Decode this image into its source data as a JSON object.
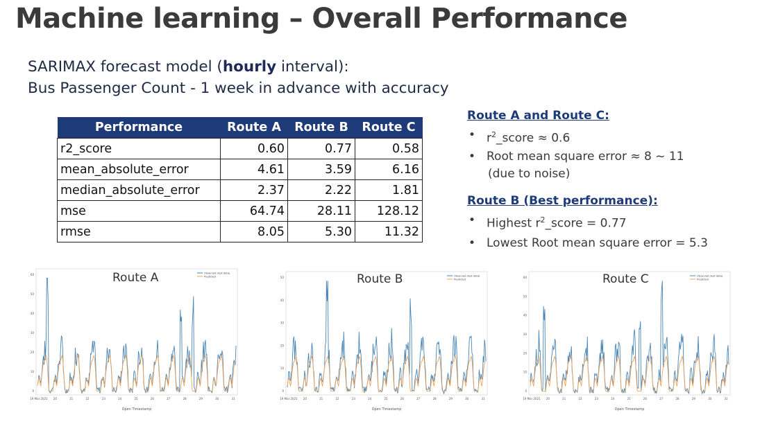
{
  "slide": {
    "title": "Machine learning – Overall Performance",
    "subtitle_line1_pre": "SARIMAX forecast model (",
    "subtitle_line1_bold": "hourly",
    "subtitle_line1_post": " interval):",
    "subtitle_line2": "Bus Passenger Count - 1 week in advance with accuracy"
  },
  "table": {
    "headers": [
      "Performance",
      "Route A",
      "Route B",
      "Route C"
    ],
    "rows": [
      [
        "r2_score",
        "0.60",
        "0.77",
        "0.58"
      ],
      [
        "mean_absolute_error",
        "4.61",
        "3.59",
        "6.16"
      ],
      [
        "median_absolute_error",
        "2.37",
        "2.22",
        "1.81"
      ],
      [
        "mse",
        "64.74",
        "28.11",
        "128.12"
      ],
      [
        "rmse",
        "8.05",
        "5.30",
        "11.32"
      ]
    ],
    "header_color": "#1f3a78"
  },
  "notes": {
    "ac_heading": "Route A and Route C:",
    "ac_r2_prefix": "r",
    "ac_r2_sup": "2",
    "ac_r2_suffix": "_score ≈ 0.6",
    "ac_rmse": "Root mean square error ≈ 8 ~ 11",
    "ac_rmse_note": "(due to noise)",
    "b_heading": "Route B (Best performance):",
    "b_r2_prefix": "Highest r",
    "b_r2_sup": "2",
    "b_r2_suffix": "_score = 0.77",
    "b_rmse": "Lowest Root mean square error = 5.3"
  },
  "colors": {
    "observed": "#4a86b6",
    "predicted": "#f0a35a",
    "heading": "#1f3a78"
  },
  "charts": [
    {
      "label": "Route A",
      "xlabel": "Open Timestamp",
      "legend": [
        "Observed (test data)",
        "Predicted"
      ],
      "yticks": [
        "60",
        "50",
        "40",
        "30",
        "20",
        "10",
        "0"
      ],
      "xticks": [
        "19 Mar 2021",
        "20",
        "21",
        "22",
        "23",
        "24",
        "25",
        "26",
        "27",
        "28",
        "29",
        "30",
        "31"
      ]
    },
    {
      "label": "Route B",
      "xlabel": "Open Timestamp",
      "legend": [
        "Observed (test data)",
        "Predicted"
      ],
      "yticks": [
        "50",
        "40",
        "30",
        "20",
        "10",
        "0"
      ],
      "xticks": [
        "19 Mar 2021",
        "20",
        "21",
        "22",
        "23",
        "24",
        "25",
        "26",
        "27",
        "28",
        "29",
        "30",
        "31"
      ]
    },
    {
      "label": "Route C",
      "xlabel": "Open Timestamp",
      "legend": [
        "Observed (test data)",
        "Predicted"
      ],
      "yticks": [
        "60",
        "50",
        "40",
        "30",
        "20",
        "10",
        "0"
      ],
      "xticks": [
        "19 Mar 2021",
        "20",
        "21",
        "22",
        "23",
        "24",
        "25",
        "26",
        "27",
        "28",
        "29",
        "30",
        "31"
      ]
    }
  ]
}
